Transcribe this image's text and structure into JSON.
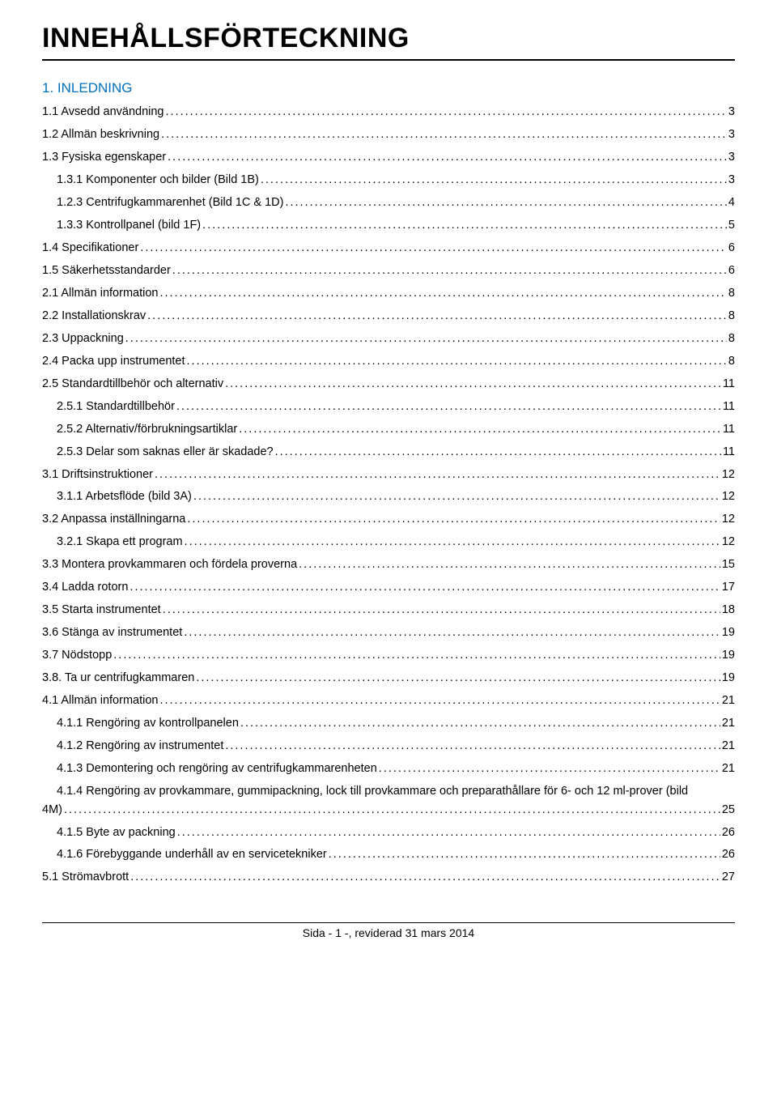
{
  "title": "INNEHÅLLSFÖRTECKNING",
  "section_head": "1. INLEDNING",
  "entries": [
    {
      "label": "1.1 Avsedd användning",
      "page": "3",
      "indent": 0
    },
    {
      "label": "1.2 Allmän beskrivning",
      "page": "3",
      "indent": 0
    },
    {
      "label": "1.3 Fysiska egenskaper",
      "page": "3",
      "indent": 0
    },
    {
      "label": "1.3.1 Komponenter och bilder (Bild 1B)",
      "page": "3",
      "indent": 1
    },
    {
      "label": "1.2.3 Centrifugkammarenhet (Bild 1C & 1D)",
      "page": "4",
      "indent": 1
    },
    {
      "label": "1.3.3 Kontrollpanel (bild 1F)",
      "page": "5",
      "indent": 1
    },
    {
      "label": "1.4 Specifikationer",
      "page": "6",
      "indent": 0
    },
    {
      "label": "1.5 Säkerhetsstandarder",
      "page": "6",
      "indent": 0
    },
    {
      "label": "2.1 Allmän information",
      "page": "8",
      "indent": 0
    },
    {
      "label": "2.2 Installationskrav",
      "page": "8",
      "indent": 0
    },
    {
      "label": "2.3 Uppackning",
      "page": "8",
      "indent": 0
    },
    {
      "label": "2.4 Packa upp instrumentet",
      "page": "8",
      "indent": 0
    },
    {
      "label": "2.5 Standardtillbehör och alternativ",
      "page": "11",
      "indent": 0
    },
    {
      "label": "2.5.1 Standardtillbehör",
      "page": "11",
      "indent": 1
    },
    {
      "label": "2.5.2 Alternativ/förbrukningsartiklar",
      "page": "11",
      "indent": 1
    },
    {
      "label": "2.5.3 Delar som saknas eller är skadade?",
      "page": "11",
      "indent": 1
    },
    {
      "label": "3.1 Driftsinstruktioner",
      "page": "12",
      "indent": 0
    },
    {
      "label": "3.1.1 Arbetsflöde (bild 3A)",
      "page": "12",
      "indent": 1
    },
    {
      "label": "3.2 Anpassa inställningarna",
      "page": "12",
      "indent": 0
    },
    {
      "label": "3.2.1 Skapa ett program",
      "page": "12",
      "indent": 1
    },
    {
      "label": "3.3 Montera provkammaren och fördela proverna",
      "page": "15",
      "indent": 0
    },
    {
      "label": "3.4 Ladda rotorn",
      "page": "17",
      "indent": 0
    },
    {
      "label": "3.5 Starta instrumentet",
      "page": "18",
      "indent": 0
    },
    {
      "label": "3.6 Stänga av instrumentet",
      "page": "19",
      "indent": 0
    },
    {
      "label": "3.7 Nödstopp",
      "page": "19",
      "indent": 0
    },
    {
      "label": "3.8. Ta ur centrifugkammaren",
      "page": "19",
      "indent": 0
    },
    {
      "label": "4.1 Allmän information",
      "page": "21",
      "indent": 0
    },
    {
      "label": "4.1.1 Rengöring av kontrollpanelen",
      "page": "21",
      "indent": 1
    },
    {
      "label": "4.1.2 Rengöring av instrumentet",
      "page": "21",
      "indent": 1
    },
    {
      "label": "4.1.3 Demontering och rengöring av centrifugkammarenheten",
      "page": "21",
      "indent": 1
    },
    {
      "label": "4.1.4 Rengöring av provkammare, gummipackning, lock till provkammare och preparathållare för 6- och 12 ml-prover (bild 4M)",
      "page": "25",
      "indent": 1,
      "wrap": true
    },
    {
      "label": "4.1.5 Byte av packning",
      "page": "26",
      "indent": 1
    },
    {
      "label": "4.1.6 Förebyggande underhåll av en servicetekniker",
      "page": "26",
      "indent": 1
    },
    {
      "label": "5.1      Strömavbrott",
      "page": "27",
      "indent": 0
    }
  ],
  "footer": "Sida - 1 -, reviderad 31 mars 2014",
  "colors": {
    "text": "#000000",
    "link": "#0070c0",
    "background": "#ffffff"
  },
  "typography": {
    "title_fontsize": 34,
    "body_fontsize": 14.5,
    "section_head_fontsize": 17,
    "font_family": "Arial"
  }
}
